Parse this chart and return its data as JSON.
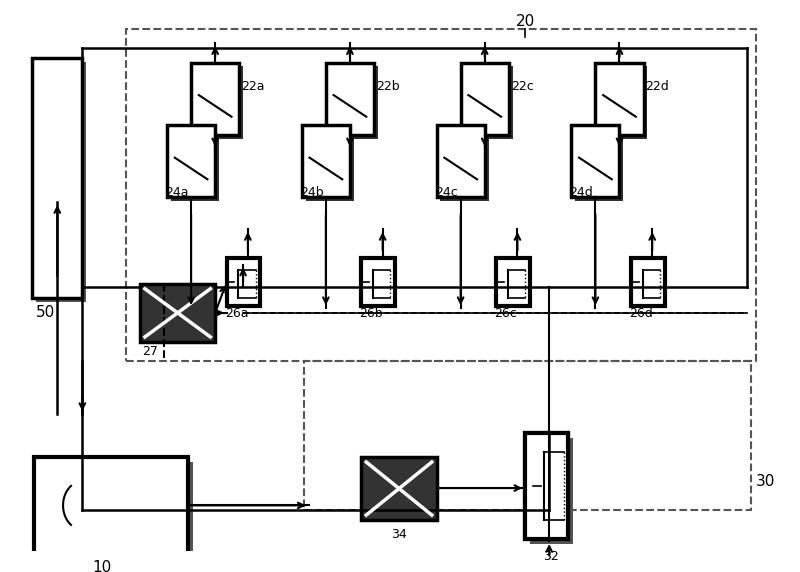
{
  "fig_width": 8.0,
  "fig_height": 5.72,
  "bg_color": "#ffffff",
  "line_color": "#000000",
  "label_50": "50",
  "label_20": "20",
  "label_10": "10",
  "label_27": "27",
  "label_34": "34",
  "label_32": "32",
  "label_30": "30",
  "label_22a": "22a",
  "label_22b": "22b",
  "label_22c": "22c",
  "label_22d": "22d",
  "label_24a": "24a",
  "label_24b": "24b",
  "label_24c": "24c",
  "label_24d": "24d",
  "label_26a": "26a",
  "label_26b": "26b",
  "label_26c": "26c",
  "label_26d": "26d"
}
